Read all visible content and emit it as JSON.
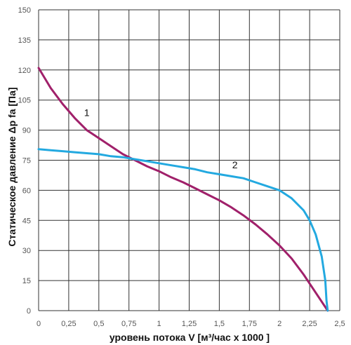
{
  "chart_data": {
    "type": "line",
    "xlabel": "уровень потока  V [м³/час x 1000 ]",
    "ylabel": "Статическое давление  Δp fa [Па]",
    "xlim": [
      0,
      2.5
    ],
    "ylim": [
      0,
      150
    ],
    "x_ticks": [
      "0",
      "0,25",
      "0,5",
      "0,75",
      "1",
      "1,25",
      "1,5",
      "1,75",
      "2",
      "2,25",
      "2,5"
    ],
    "y_ticks": [
      "0",
      "15",
      "30",
      "45",
      "60",
      "75",
      "90",
      "105",
      "120",
      "135",
      "150"
    ],
    "grid": true,
    "series": [
      {
        "name": "1",
        "color": "#a0206a",
        "points": [
          [
            0,
            121
          ],
          [
            0.1,
            111
          ],
          [
            0.2,
            103
          ],
          [
            0.3,
            96
          ],
          [
            0.4,
            90
          ],
          [
            0.5,
            86
          ],
          [
            0.6,
            82
          ],
          [
            0.7,
            78
          ],
          [
            0.8,
            75
          ],
          [
            0.9,
            72
          ],
          [
            1.0,
            69.5
          ],
          [
            1.1,
            66.5
          ],
          [
            1.2,
            64
          ],
          [
            1.3,
            61
          ],
          [
            1.4,
            58
          ],
          [
            1.5,
            55
          ],
          [
            1.6,
            51.5
          ],
          [
            1.7,
            47.5
          ],
          [
            1.8,
            43
          ],
          [
            1.9,
            38
          ],
          [
            2.0,
            32.5
          ],
          [
            2.1,
            26
          ],
          [
            2.2,
            18
          ],
          [
            2.3,
            9
          ],
          [
            2.4,
            0
          ]
        ]
      },
      {
        "name": "2",
        "color": "#23a9e0",
        "points": [
          [
            0,
            80.5
          ],
          [
            0.1,
            80
          ],
          [
            0.2,
            79.5
          ],
          [
            0.3,
            79
          ],
          [
            0.4,
            78.5
          ],
          [
            0.5,
            78
          ],
          [
            0.6,
            77
          ],
          [
            0.7,
            76.5
          ],
          [
            0.8,
            75.5
          ],
          [
            0.9,
            74.5
          ],
          [
            1.0,
            73.5
          ],
          [
            1.1,
            72.5
          ],
          [
            1.2,
            71.5
          ],
          [
            1.3,
            70.5
          ],
          [
            1.4,
            69
          ],
          [
            1.5,
            68
          ],
          [
            1.6,
            67
          ],
          [
            1.7,
            66
          ],
          [
            1.8,
            64
          ],
          [
            1.9,
            62
          ],
          [
            2.0,
            60
          ],
          [
            2.1,
            56
          ],
          [
            2.2,
            50
          ],
          [
            2.25,
            45
          ],
          [
            2.3,
            38
          ],
          [
            2.35,
            27
          ],
          [
            2.38,
            15
          ],
          [
            2.39,
            5
          ],
          [
            2.4,
            0
          ]
        ]
      }
    ],
    "annotations": [
      {
        "text": "1",
        "x": 0.4,
        "y": 97
      },
      {
        "text": "2",
        "x": 1.63,
        "y": 71
      }
    ]
  }
}
